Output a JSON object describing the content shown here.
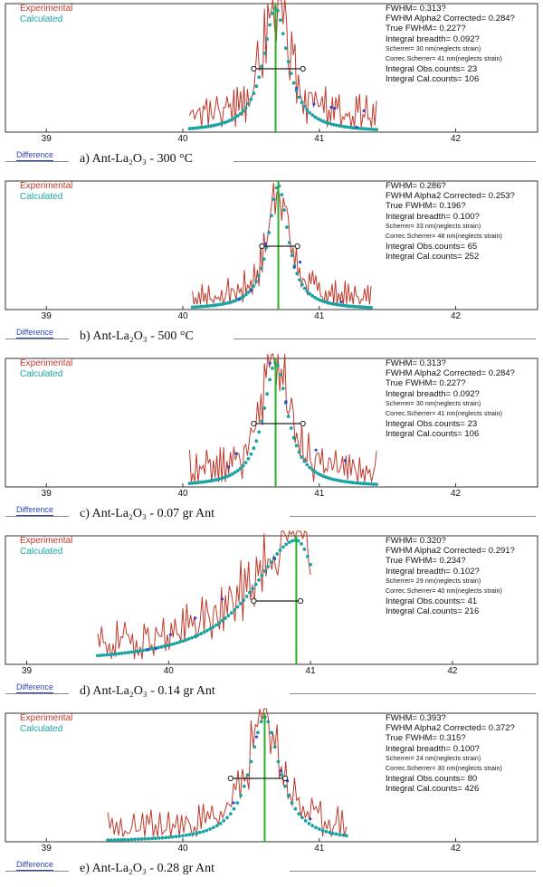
{
  "legend": {
    "experimental": "Experimental",
    "calculated": "Calculated"
  },
  "colors": {
    "experimental": "#c0392b",
    "calculated": "#1aa3a3",
    "marker": "#2ab02a",
    "fwhm": "#222222",
    "points": "#3344cc"
  },
  "difference_label": "Difference",
  "chart_data": [
    {
      "type": "line",
      "caption": "a) Ant-La₂O₃ - 300 °C",
      "xlim": [
        38.7,
        42.6
      ],
      "ticks": [
        39,
        40,
        41,
        42
      ],
      "peak": 40.68,
      "fwhm_range": [
        40.52,
        40.88
      ],
      "calc_range": [
        40.05,
        41.42
      ],
      "calc_width": 0.16,
      "exp_range": [
        40.05,
        41.42
      ],
      "noise": 0.55,
      "seed": 3,
      "stats": [
        "FWHM= 0.313?",
        "FWHM Alpha2 Corrected= 0.284?",
        "True FWHM= 0.227?",
        "Integral breadth= 0.092?",
        "Scherrer= 30 nm(neglects strain)",
        "Correc.Scherrer= 41 nm(neglects strain)",
        "Integral Obs.counts= 23",
        "Integral Cal.counts= 106"
      ]
    },
    {
      "type": "line",
      "caption": "b) Ant-La₂O₃ - 500 °C",
      "xlim": [
        38.7,
        42.6
      ],
      "ticks": [
        39,
        40,
        41,
        42
      ],
      "peak": 40.7,
      "fwhm_range": [
        40.58,
        40.84
      ],
      "calc_range": [
        40.07,
        41.38
      ],
      "calc_width": 0.13,
      "exp_range": [
        40.07,
        41.38
      ],
      "noise": 0.38,
      "seed": 7,
      "stats": [
        "FWHM= 0.286?",
        "FWHM Alpha2 Corrected= 0.253?",
        "True FWHM= 0.196?",
        "Integral breadth= 0.100?",
        "Scherrer= 33 nm(neglects strain)",
        "Correc.Scherrer= 48 nm(neglects strain)",
        "Integral Obs.counts= 65",
        "Integral Cal.counts= 252"
      ]
    },
    {
      "type": "line",
      "caption": "c) Ant-La₂O₃ - 0.07 gr Ant",
      "xlim": [
        38.7,
        42.6
      ],
      "ticks": [
        39,
        40,
        41,
        42
      ],
      "peak": 40.68,
      "fwhm_range": [
        40.52,
        40.88
      ],
      "calc_range": [
        40.05,
        41.42
      ],
      "calc_width": 0.16,
      "exp_range": [
        40.05,
        41.42
      ],
      "noise": 0.55,
      "seed": 11,
      "stats": [
        "FWHM= 0.313?",
        "FWHM Alpha2 Corrected= 0.284?",
        "True FWHM= 0.227?",
        "Integral breadth= 0.092?",
        "Scherrer= 30 nm(neglects strain)",
        "Correc.Scherrer= 41 nm(neglects strain)",
        "Integral Obs.counts= 23",
        "Integral Cal.counts= 106"
      ]
    },
    {
      "type": "line",
      "caption": "d) Ant-La₂O₃ - 0.14 gr Ant",
      "xlim": [
        38.85,
        42.6
      ],
      "ticks": [
        39,
        40,
        41,
        42
      ],
      "peak": 40.9,
      "fwhm_range": [
        40.6,
        40.93
      ],
      "calc_range": [
        39.5,
        41.0
      ],
      "calc_width": 0.3,
      "exp_range": [
        39.5,
        41.0
      ],
      "noise": 0.5,
      "seed": 19,
      "asym": true,
      "stats": [
        "FWHM= 0.320?",
        "FWHM Alpha2 Corrected= 0.291?",
        "True FWHM= 0.234?",
        "Integral breadth= 0.102?",
        "Scherrer= 29 nm(neglects strain)",
        "Correc.Scherrer= 40 nm(neglects strain)",
        "Integral Obs.counts= 41",
        "Integral Cal.counts= 216"
      ]
    },
    {
      "type": "line",
      "caption": "e) Ant-La₂O₃ - 0.28 gr Ant",
      "xlim": [
        38.7,
        42.6
      ],
      "ticks": [
        39,
        40,
        41,
        42
      ],
      "peak": 40.6,
      "fwhm_range": [
        40.35,
        40.75
      ],
      "calc_range": [
        39.45,
        41.2
      ],
      "calc_width": 0.2,
      "exp_range": [
        39.45,
        41.2
      ],
      "noise": 0.45,
      "seed": 23,
      "stats": [
        "FWHM= 0.393?",
        "FWHM Alpha2 Corrected= 0.372?",
        "True FWHM= 0.315?",
        "Integral breadth= 0.100?",
        "Scherrer= 24 nm(neglects strain)",
        "Correc.Scherrer= 30 nm(neglects strain)",
        "Integral Obs.counts= 80",
        "Integral Cal.counts= 426"
      ]
    }
  ]
}
